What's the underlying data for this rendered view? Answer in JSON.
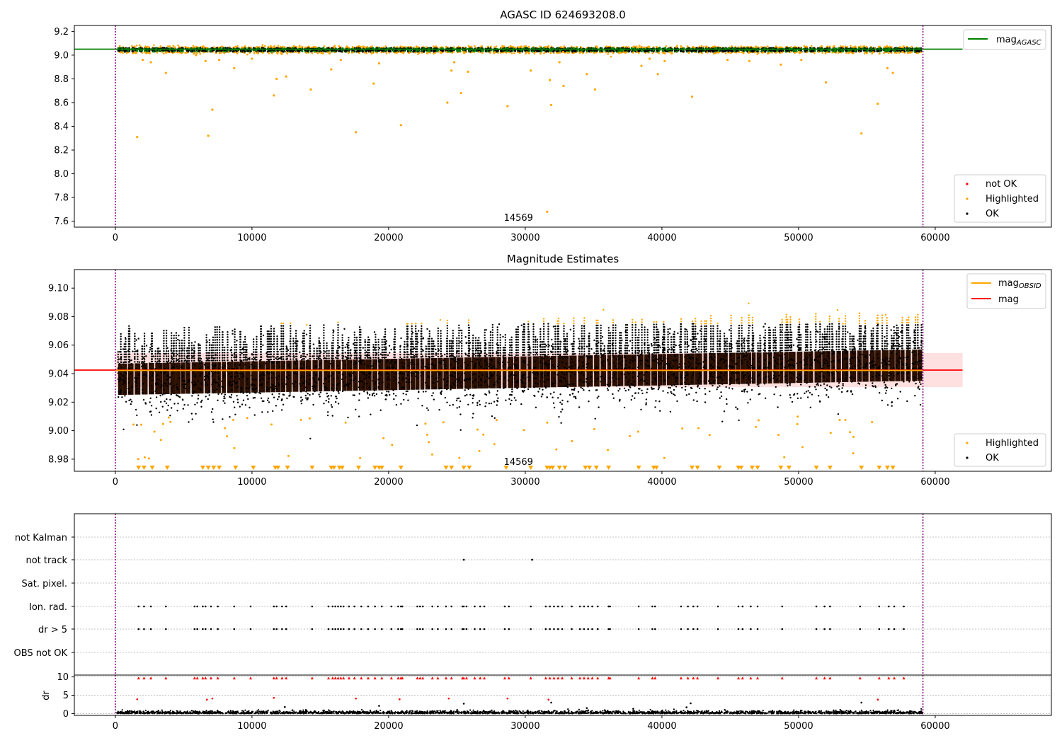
{
  "chart_data": [
    {
      "type": "scatter",
      "title": "AGASC ID 624693208.0",
      "xlim": [
        -3000,
        68500
      ],
      "ylim": [
        7.55,
        9.25
      ],
      "xticks": [
        0,
        10000,
        20000,
        30000,
        40000,
        50000,
        60000
      ],
      "yticks": [
        7.6,
        7.8,
        8.0,
        8.2,
        8.4,
        8.6,
        8.8,
        9.0,
        9.2
      ],
      "ytick_labels": [
        "7.6",
        "7.8",
        "8.0",
        "8.2",
        "8.4",
        "8.6",
        "8.8",
        "9.0",
        "9.2"
      ],
      "vlines": [
        0,
        59100
      ],
      "annotation": {
        "text": "14569",
        "x": 29500
      },
      "mag_agasc": 9.05,
      "band": [
        9.02,
        9.07
      ],
      "outliers": [
        [
          1600,
          8.31
        ],
        [
          2000,
          8.96
        ],
        [
          2600,
          8.94
        ],
        [
          3700,
          8.85
        ],
        [
          5900,
          9.0
        ],
        [
          6600,
          8.95
        ],
        [
          6800,
          8.32
        ],
        [
          7100,
          8.54
        ],
        [
          7600,
          8.96
        ],
        [
          8700,
          8.89
        ],
        [
          10000,
          8.97
        ],
        [
          11600,
          8.66
        ],
        [
          11800,
          8.8
        ],
        [
          12500,
          8.82
        ],
        [
          14300,
          8.71
        ],
        [
          15800,
          8.88
        ],
        [
          16500,
          8.96
        ],
        [
          17600,
          8.35
        ],
        [
          18900,
          8.76
        ],
        [
          19300,
          8.93
        ],
        [
          20900,
          8.41
        ],
        [
          24300,
          8.6
        ],
        [
          24600,
          8.87
        ],
        [
          24800,
          8.94
        ],
        [
          25300,
          8.68
        ],
        [
          25800,
          8.86
        ],
        [
          28700,
          8.57
        ],
        [
          30400,
          8.87
        ],
        [
          31600,
          7.68
        ],
        [
          31800,
          8.79
        ],
        [
          31900,
          8.58
        ],
        [
          32500,
          8.94
        ],
        [
          32800,
          8.74
        ],
        [
          34500,
          8.84
        ],
        [
          35100,
          8.71
        ],
        [
          38500,
          8.91
        ],
        [
          39100,
          8.97
        ],
        [
          39700,
          8.84
        ],
        [
          40200,
          8.95
        ],
        [
          42200,
          8.65
        ],
        [
          44800,
          8.96
        ],
        [
          46400,
          8.95
        ],
        [
          48700,
          8.92
        ],
        [
          50200,
          8.96
        ],
        [
          52000,
          8.77
        ],
        [
          54600,
          8.34
        ],
        [
          55800,
          8.59
        ],
        [
          56500,
          8.89
        ],
        [
          56900,
          8.85
        ]
      ],
      "legend_lines": [
        "mag"
      ],
      "legend_lines_sub": [
        "AGASC"
      ],
      "legend_points": [
        "not OK",
        "Highlighted",
        "OK"
      ]
    },
    {
      "type": "scatter",
      "title": "Magnitude Estimates",
      "xlim": [
        -3000,
        68500
      ],
      "ylim": [
        8.9715,
        9.113
      ],
      "xticks": [
        0,
        10000,
        20000,
        30000,
        40000,
        50000,
        60000
      ],
      "yticks": [
        8.98,
        9.0,
        9.02,
        9.04,
        9.06,
        9.08,
        9.1
      ],
      "ytick_labels": [
        "8.98",
        "9.00",
        "9.02",
        "9.04",
        "9.06",
        "9.08",
        "9.10"
      ],
      "vlines": [
        0,
        59100
      ],
      "annotation": {
        "text": "14569",
        "x": 29500
      },
      "mag": 9.0425,
      "mag_band": [
        9.0305,
        9.0545
      ],
      "trend_start": 9.036,
      "trend_end": 9.046,
      "lower_markers": [
        1700,
        2100,
        2700,
        3800,
        6400,
        6800,
        7200,
        7600,
        8800,
        10100,
        11700,
        11900,
        12600,
        14400,
        15800,
        16000,
        16400,
        16600,
        17800,
        19000,
        19300,
        19500,
        20900,
        24200,
        24600,
        25500,
        25900,
        28600,
        30400,
        31600,
        31800,
        32000,
        32500,
        32900,
        34400,
        34700,
        35200,
        36100,
        38300,
        39400,
        39600,
        42200,
        42600,
        44200,
        45600,
        45800,
        46600,
        47000,
        48700,
        49300,
        51300,
        52300,
        54600,
        55900,
        56500,
        56900
      ],
      "legend_lines": [
        "mag",
        "mag"
      ],
      "legend_lines_sub": [
        "OBSID",
        ""
      ],
      "legend_points": [
        "Highlighted",
        "OK"
      ]
    },
    {
      "type": "scatter",
      "xlim": [
        -3000,
        68500
      ],
      "xticks": [
        0,
        10000,
        20000,
        30000,
        40000,
        50000,
        60000
      ],
      "flag_labels": [
        "not Kalman",
        "not track",
        "Sat. pixel.",
        "Ion. rad.",
        "dr > 5",
        "OBS not OK"
      ],
      "vlines": [
        0,
        59100
      ],
      "not_track_x": [
        25500,
        30500
      ],
      "flag_x": [
        1700,
        2100,
        2600,
        3700,
        5800,
        6000,
        6400,
        6600,
        7000,
        7500,
        8700,
        9900,
        11600,
        11800,
        12200,
        12500,
        14400,
        15600,
        15900,
        16100,
        16300,
        16500,
        16700,
        17100,
        17500,
        18000,
        18500,
        19000,
        19500,
        20200,
        20700,
        20900,
        21000,
        22100,
        22300,
        22500,
        23200,
        23600,
        24200,
        24600,
        25400,
        25500,
        25700,
        26300,
        26700,
        27000,
        28500,
        28800,
        30400,
        31500,
        31800,
        32100,
        32400,
        32700,
        33400,
        34000,
        34300,
        34600,
        34900,
        35300,
        36100,
        36200,
        38300,
        39300,
        39500,
        41400,
        41900,
        42300,
        42600,
        44100,
        45600,
        45900,
        46500,
        47000,
        48800,
        51300,
        51900,
        52300,
        54500,
        55900,
        56600,
        57000,
        57700
      ],
      "dr_label": "dr",
      "dr_ylim": [
        -0.5,
        10.5
      ],
      "dr_yticks": [
        0,
        5,
        10
      ],
      "dr_ytick_labels": [
        "0",
        "5",
        "10"
      ],
      "dr_mid": [
        [
          1600,
          3.9
        ],
        [
          6700,
          3.8
        ],
        [
          7100,
          4.1
        ],
        [
          11600,
          4.3
        ],
        [
          12400,
          1.8
        ],
        [
          17600,
          4.1
        ],
        [
          19300,
          2.1
        ],
        [
          20800,
          3.9
        ],
        [
          24400,
          4.1
        ],
        [
          25500,
          2.7
        ],
        [
          28700,
          4.1
        ],
        [
          31700,
          3.8
        ],
        [
          31900,
          3.0
        ],
        [
          34500,
          1.5
        ],
        [
          41800,
          1.7
        ],
        [
          42100,
          2.8
        ],
        [
          54600,
          3.0
        ],
        [
          55800,
          3.8
        ],
        [
          37900,
          1.3
        ]
      ]
    }
  ]
}
